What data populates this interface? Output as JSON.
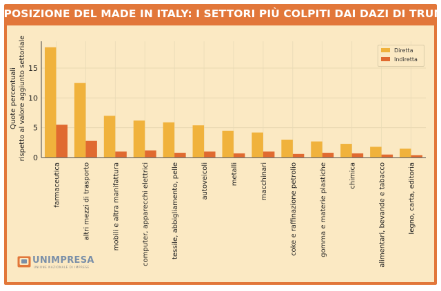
{
  "header": {
    "title": "ESPOSIZIONE DEL MADE IN ITALY: I SETTORI PIÙ COLPITI DAI DAZI DI TRUMP"
  },
  "brand": {
    "name": "UNIMPRESA",
    "tagline": "UNIONE NAZIONALE DI IMPRESE"
  },
  "colors": {
    "frame": "#e2773a",
    "background": "#fbe9c3",
    "diretta": "#f0b23c",
    "indiretta": "#e06a30"
  },
  "chart_data": {
    "type": "bar",
    "ylabel": "Quote percentuali\nrispetto al valore aggiunto settoriale",
    "ylim": [
      0,
      19.5
    ],
    "yticks": [
      0,
      5,
      10,
      15
    ],
    "grid": true,
    "legend_position": "top-right",
    "categories": [
      "farmaceutica",
      "altri mezzi di trasporto",
      "mobili e altra manifattura",
      "computer, apparecchi elettrici",
      "tessile, abbigliamento, pelle",
      "autoveicoli",
      "metalli",
      "macchinari",
      "coke e raffinazione petrolio",
      "gomma e materie plastiche",
      "chimica",
      "alimentari, bevande e tabacco",
      "legno, carta, editoria"
    ],
    "series": [
      {
        "name": "Diretta",
        "values": [
          18.5,
          12.5,
          7.0,
          6.2,
          5.9,
          5.4,
          4.5,
          4.2,
          3.0,
          2.7,
          2.3,
          1.8,
          1.5
        ]
      },
      {
        "name": "Indiretta",
        "values": [
          5.5,
          2.8,
          1.0,
          1.2,
          0.8,
          1.0,
          0.7,
          1.0,
          0.6,
          0.8,
          0.7,
          0.5,
          0.4
        ]
      }
    ]
  }
}
